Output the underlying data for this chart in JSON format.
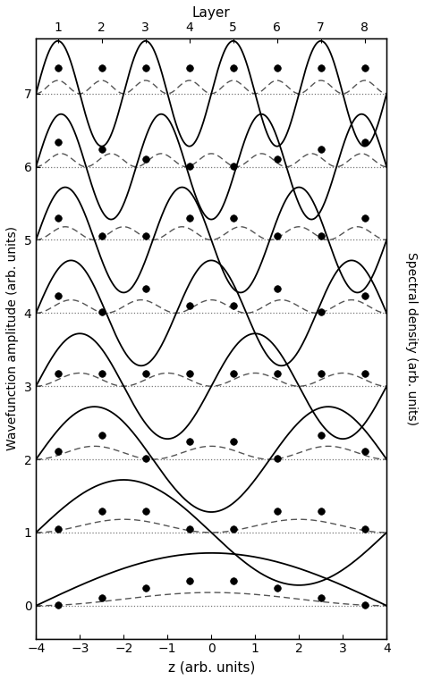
{
  "x_min": -4,
  "x_max": 4,
  "y_min": -0.45,
  "y_max": 7.75,
  "n_levels": 8,
  "wf_amplitude": 0.72,
  "spec_amplitude": 0.18,
  "layer_positions": [
    -3.5,
    -2.5,
    -1.5,
    -0.5,
    0.5,
    1.5,
    2.5,
    3.5
  ],
  "layer_labels": [
    "1",
    "2",
    "3",
    "4",
    "5",
    "6",
    "7",
    "8"
  ],
  "xlabel": "z (arb. units)",
  "ylabel": "Wavefunction amplitude (arb. units)",
  "ylabel_right": "Spectral density (arb. units)",
  "top_label": "Layer",
  "xticks": [
    -4,
    -3,
    -2,
    -1,
    0,
    1,
    2,
    3,
    4
  ],
  "yticks": [
    0,
    1,
    2,
    3,
    4,
    5,
    6,
    7
  ],
  "wavefunction_color": "#000000",
  "spectral_color": "#555555",
  "dot_color": "#000000",
  "dotted_line_color": "#777777",
  "background_color": "#ffffff"
}
